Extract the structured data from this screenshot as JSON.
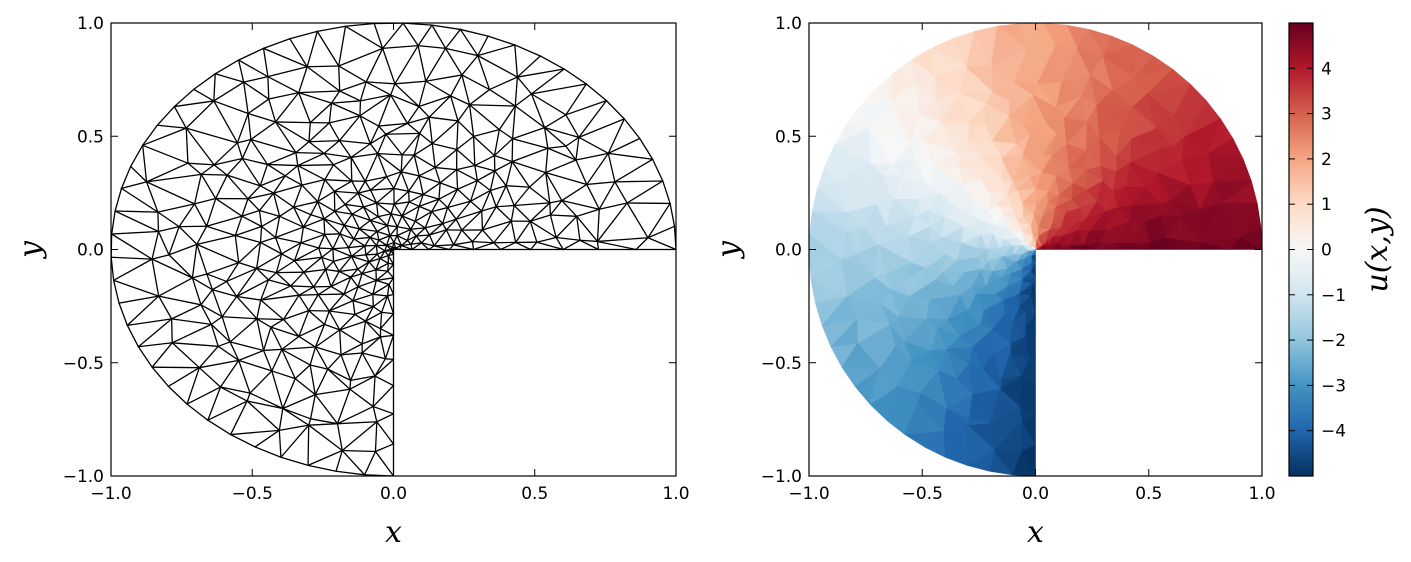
{
  "chart_data": [
    {
      "type": "mesh",
      "title": "",
      "xlabel": "x",
      "ylabel": "y",
      "xlim": [
        -1.0,
        1.0
      ],
      "ylim": [
        -1.0,
        1.0
      ],
      "x_ticks": [
        "−1.0",
        "−0.5",
        "0.0",
        "0.5",
        "1.0"
      ],
      "y_ticks": [
        "−1.0",
        "−0.5",
        "0.0",
        "0.5",
        "1.0"
      ],
      "domain": "three-quarter unit disk (quadrant x>0, y<0 removed)",
      "refinement": "mesh refined toward the re-entrant corner at (0, 0)",
      "grid": false,
      "edge_color": "#000000"
    },
    {
      "type": "heatmap",
      "title": "",
      "xlabel": "x",
      "ylabel": "y",
      "xlim": [
        -1.0,
        1.0
      ],
      "ylim": [
        -1.0,
        1.0
      ],
      "x_ticks": [
        "−1.0",
        "−0.5",
        "0.0",
        "0.5",
        "1.0"
      ],
      "y_ticks": [
        "−1.0",
        "−0.5",
        "0.0",
        "0.5",
        "1.0"
      ],
      "colorbar": {
        "label": "u(x,y)",
        "range": [
          -5,
          5
        ],
        "ticks": [
          4,
          3,
          2,
          1,
          0,
          -1,
          -2,
          -3,
          -4
        ],
        "tick_labels": [
          "4",
          "3",
          "2",
          "1",
          "0",
          "−1",
          "−2",
          "−3",
          "−4"
        ],
        "colormap": "RdBu_r",
        "colors": [
          "#053061",
          "#2166ac",
          "#4393c3",
          "#92c5de",
          "#d1e5f0",
          "#f7f7f7",
          "#fddbc7",
          "#f4a582",
          "#d6604d",
          "#b2182b",
          "#67001f"
        ]
      },
      "field": {
        "description": "value varies with polar angle about the origin",
        "samples": [
          {
            "angle_deg": 0,
            "u": 4.9
          },
          {
            "angle_deg": 45,
            "u": 3.5
          },
          {
            "angle_deg": 90,
            "u": 2.0
          },
          {
            "angle_deg": 135,
            "u": 0.2
          },
          {
            "angle_deg": 180,
            "u": -1.6
          },
          {
            "angle_deg": 225,
            "u": -3.0
          },
          {
            "angle_deg": 270,
            "u": -4.9
          }
        ]
      },
      "grid": false
    }
  ]
}
